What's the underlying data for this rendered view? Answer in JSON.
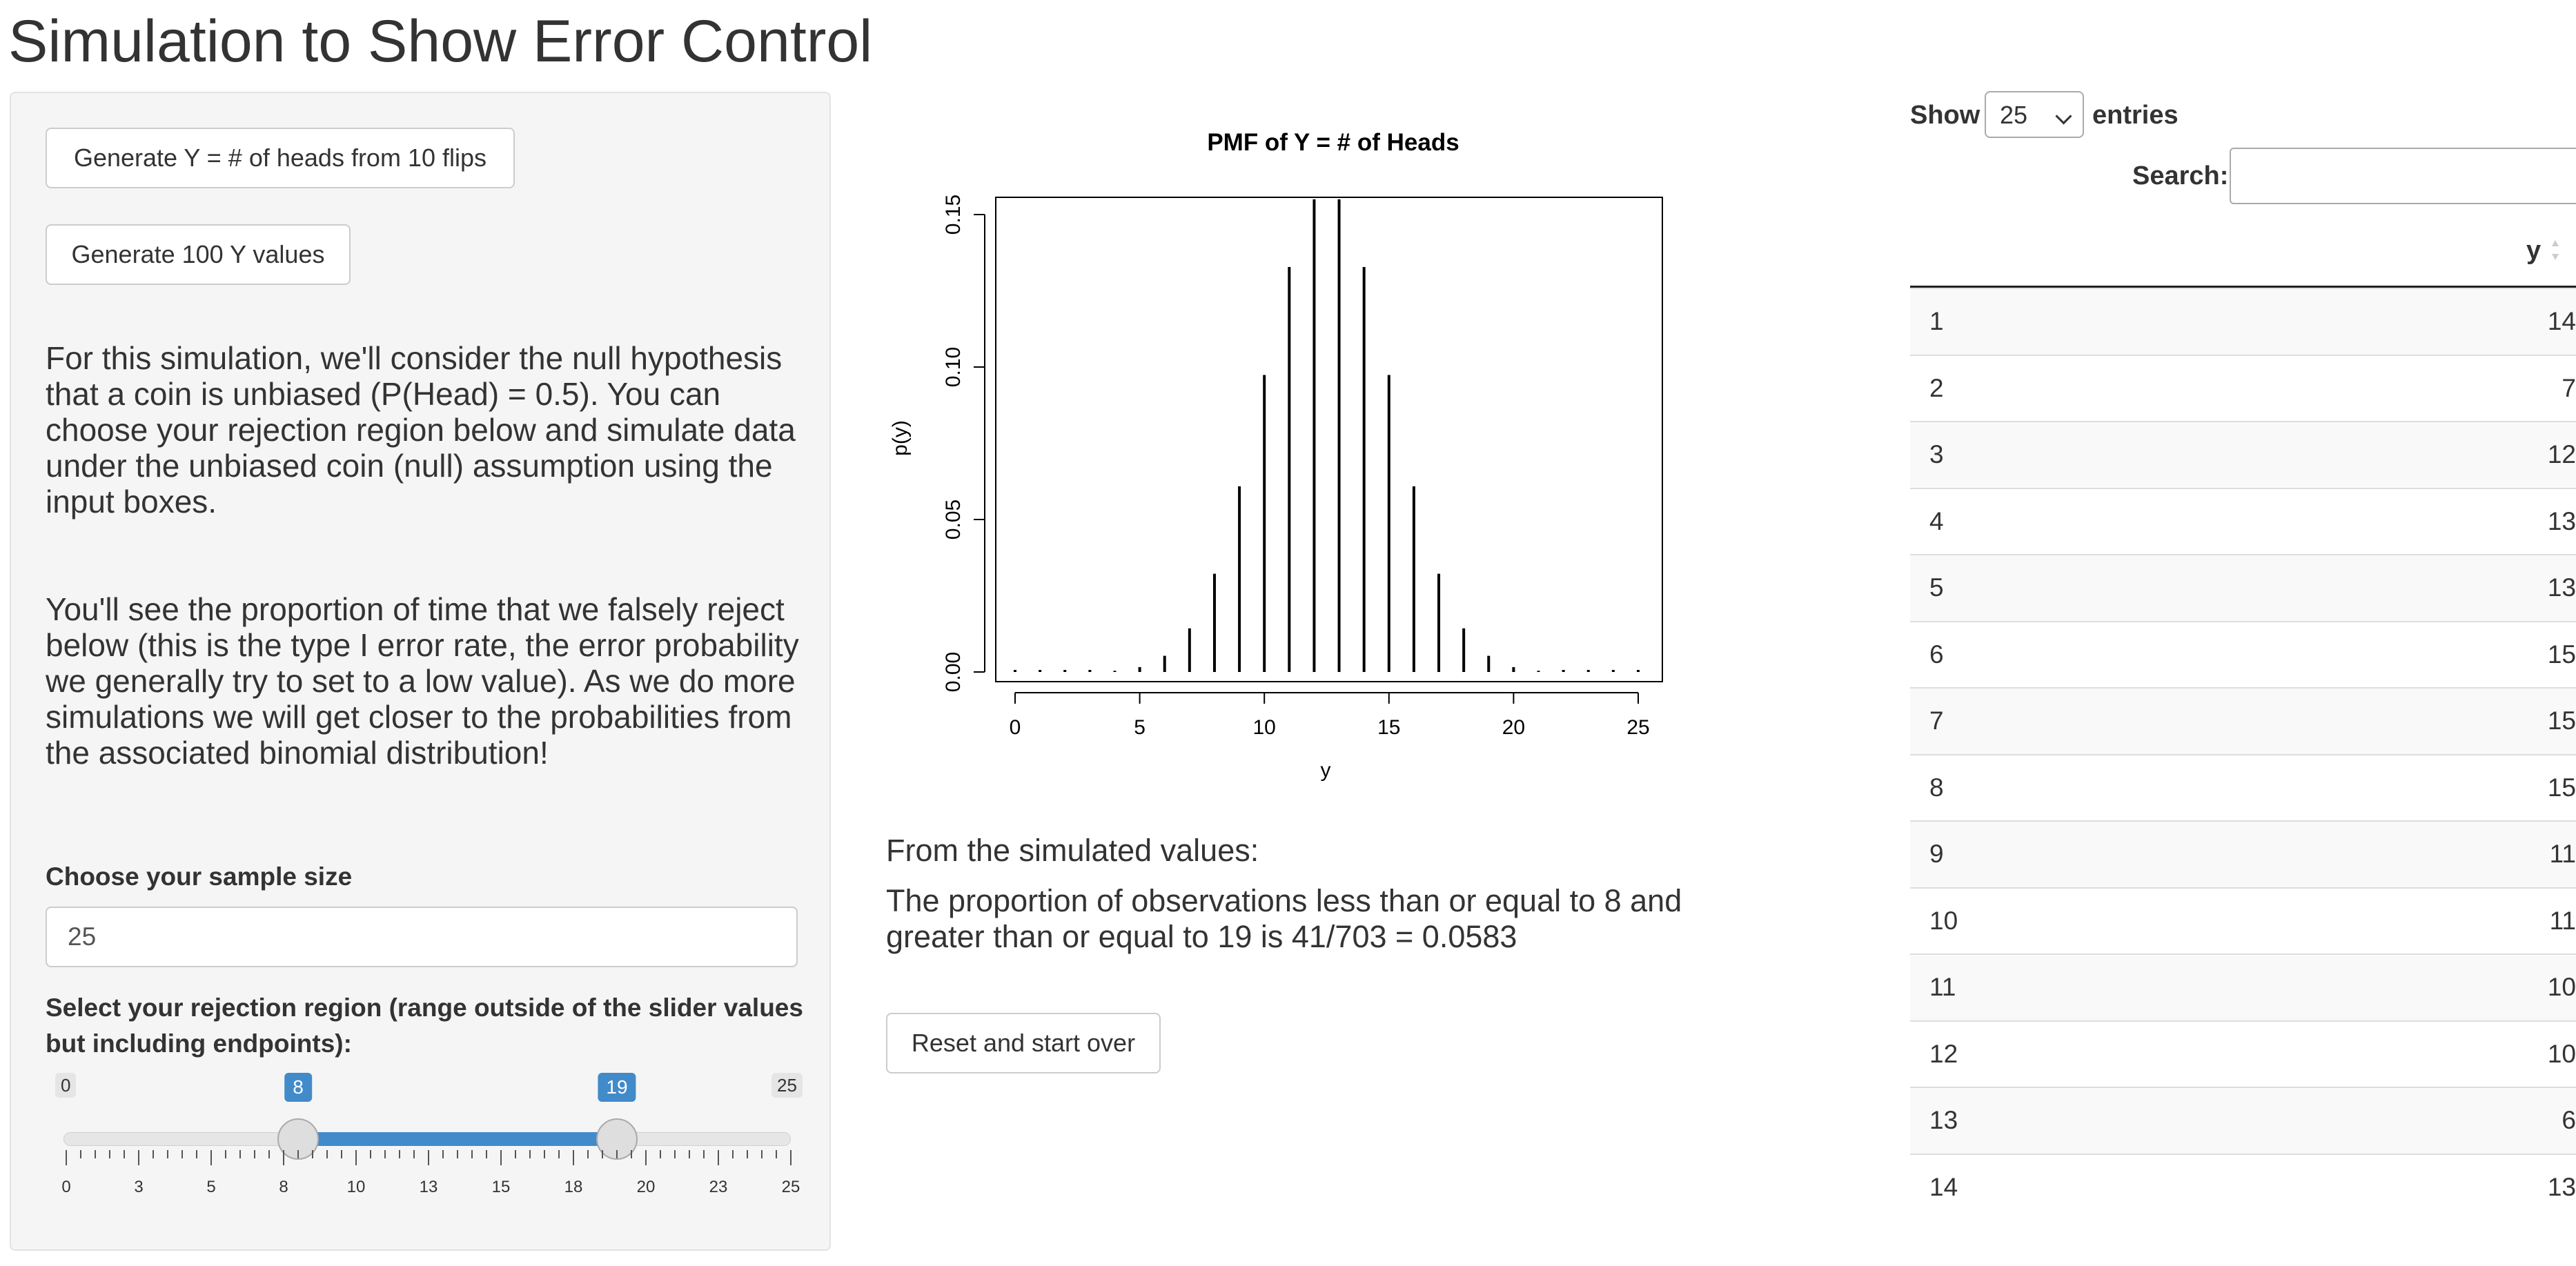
{
  "page": {
    "title": "Simulation to Show Error Control"
  },
  "sidebar": {
    "gen_one_label": "Generate Y = # of heads from 10 flips",
    "gen_100_label": "Generate 100 Y values",
    "para1": "For this simulation, we'll consider the null hypothesis that a coin is unbiased (P(Head) = 0.5). You can choose your rejection region below and simulate data under the unbiased coin (null) assumption using the input boxes.",
    "para2": "You'll see the proportion of time that we falsely reject below (this is the type I error rate, the error probability we generally try to set to a low value). As we do more simulations we will get closer to the probabilities from the associated binomial distribution!",
    "sample_label": "Choose your sample size",
    "sample_value": "25",
    "region_label": "Select your rejection region (range outside of the slider values but including endpoints):",
    "slider": {
      "min": 0,
      "max": 25,
      "from": 8,
      "to": 19,
      "min_label": "0",
      "max_label": "25",
      "from_label": "8",
      "to_label": "19",
      "ticks": [
        "0",
        "3",
        "5",
        "8",
        "10",
        "13",
        "15",
        "18",
        "20",
        "23",
        "25"
      ]
    }
  },
  "chart_data": {
    "type": "bar",
    "title": "PMF of Y = # of Heads",
    "xlabel": "y",
    "ylabel": "p(y)",
    "xlim": [
      0,
      25
    ],
    "ylim": [
      0,
      0.155
    ],
    "x_ticks": [
      "0",
      "5",
      "10",
      "15",
      "20",
      "25"
    ],
    "y_ticks": [
      "0.00",
      "0.05",
      "0.10",
      "0.15"
    ],
    "x": [
      0,
      1,
      2,
      3,
      4,
      5,
      6,
      7,
      8,
      9,
      10,
      11,
      12,
      13,
      14,
      15,
      16,
      17,
      18,
      19,
      20,
      21,
      22,
      23,
      24,
      25
    ],
    "values": [
      0,
      0,
      0,
      0,
      0.0004,
      0.0016,
      0.0053,
      0.0143,
      0.0322,
      0.0609,
      0.0974,
      0.1328,
      0.155,
      0.155,
      0.1328,
      0.0974,
      0.0609,
      0.0322,
      0.0143,
      0.0053,
      0.0016,
      0.0004,
      0,
      0,
      0,
      0
    ]
  },
  "results": {
    "intro": "From the simulated values:",
    "text": "The proportion of observations less than or equal to 8 and greater than or equal to 19 is 41/703 = 0.0583",
    "reset_label": "Reset and start over"
  },
  "table": {
    "show_label": "Show",
    "length_value": "25",
    "entries_label": "entries",
    "search_label": "Search:",
    "column_y": "y",
    "rows": [
      {
        "idx": "1",
        "y": "14"
      },
      {
        "idx": "2",
        "y": "7"
      },
      {
        "idx": "3",
        "y": "12"
      },
      {
        "idx": "4",
        "y": "13"
      },
      {
        "idx": "5",
        "y": "13"
      },
      {
        "idx": "6",
        "y": "15"
      },
      {
        "idx": "7",
        "y": "15"
      },
      {
        "idx": "8",
        "y": "15"
      },
      {
        "idx": "9",
        "y": "11"
      },
      {
        "idx": "10",
        "y": "11"
      },
      {
        "idx": "11",
        "y": "10"
      },
      {
        "idx": "12",
        "y": "10"
      },
      {
        "idx": "13",
        "y": "6"
      },
      {
        "idx": "14",
        "y": "13"
      }
    ]
  }
}
